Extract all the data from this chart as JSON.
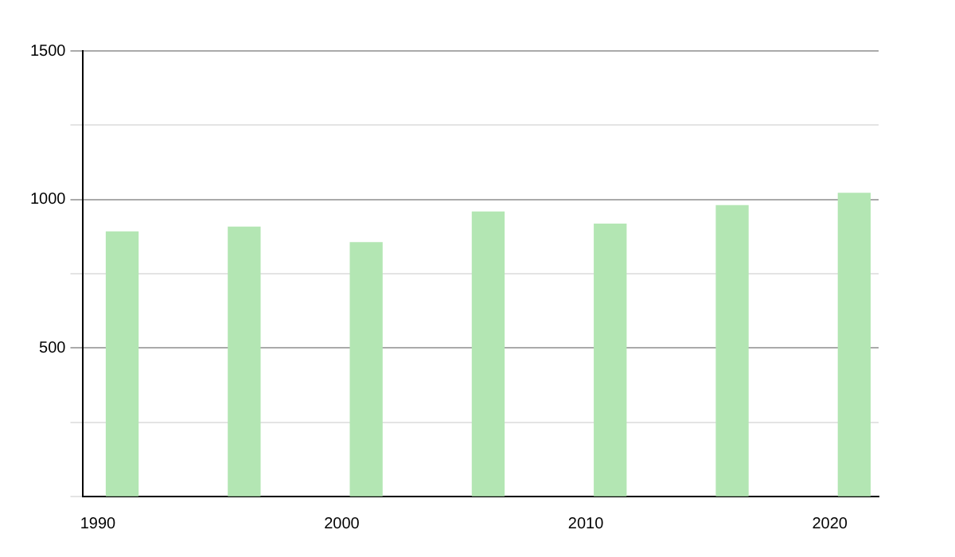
{
  "chart_data": {
    "type": "bar",
    "x": [
      1991,
      1996,
      2001,
      2006,
      2011,
      2016,
      2021
    ],
    "values": [
      891,
      907,
      855,
      958,
      917,
      979,
      1021
    ],
    "color": "#b3e6b3",
    "xlim": [
      1989.4,
      2022
    ],
    "xticks": [
      1990,
      2000,
      2010,
      2020
    ],
    "ylim": [
      0,
      1500
    ],
    "yticks": [
      {
        "value": 0,
        "label": null
      },
      {
        "value": 250,
        "label": null
      },
      500,
      {
        "value": 750,
        "label": null
      },
      1000,
      {
        "value": 1250,
        "label": null
      },
      1500
    ],
    "grid": "y"
  }
}
